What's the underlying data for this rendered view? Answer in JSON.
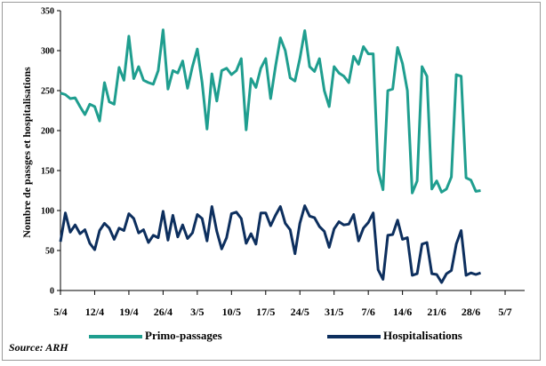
{
  "chart_data": {
    "type": "line",
    "title": "",
    "ylabel": "Nombre de passges et hospitalisations",
    "xlabel": "",
    "ylim": [
      0,
      350
    ],
    "y_ticks": [
      0,
      50,
      100,
      150,
      200,
      250,
      300,
      350
    ],
    "x_start": "5/4",
    "x_tick_labels": [
      "5/4",
      "12/4",
      "19/4",
      "26/4",
      "3/5",
      "10/5",
      "17/5",
      "24/5",
      "31/5",
      "7/6",
      "14/6",
      "21/6",
      "28/6",
      "5/7"
    ],
    "x_tick_positions_days": [
      0,
      7,
      14,
      21,
      28,
      35,
      42,
      49,
      56,
      63,
      70,
      77,
      84,
      91
    ],
    "xlim_days": [
      0,
      95
    ],
    "grid": false,
    "legend_position": "bottom",
    "series": [
      {
        "name": "Primo-passages",
        "color": "#1f9e8f",
        "values": [
          247,
          245,
          240,
          241,
          230,
          220,
          233,
          230,
          212,
          260,
          236,
          233,
          279,
          263,
          318,
          265,
          280,
          263,
          260,
          258,
          275,
          326,
          252,
          275,
          272,
          287,
          253,
          280,
          302,
          260,
          202,
          271,
          237,
          275,
          278,
          270,
          275,
          290,
          201,
          265,
          254,
          278,
          290,
          240,
          280,
          316,
          300,
          266,
          262,
          290,
          325,
          280,
          274,
          290,
          250,
          230,
          280,
          272,
          268,
          260,
          293,
          283,
          305,
          296,
          296,
          150,
          126,
          250,
          252,
          304,
          284,
          250,
          122,
          137,
          280,
          268,
          127,
          137,
          123,
          127,
          142,
          270,
          268,
          141,
          138,
          124,
          125
        ]
      },
      {
        "name": "Hospitalisations",
        "color": "#0d2f5e",
        "values": [
          61,
          97,
          73,
          82,
          71,
          76,
          59,
          51,
          75,
          84,
          78,
          64,
          78,
          75,
          96,
          90,
          72,
          76,
          60,
          69,
          66,
          99,
          63,
          94,
          67,
          82,
          65,
          72,
          95,
          90,
          62,
          105,
          74,
          52,
          66,
          96,
          98,
          90,
          59,
          71,
          58,
          97,
          97,
          81,
          94,
          105,
          84,
          76,
          46,
          84,
          106,
          93,
          91,
          80,
          74,
          54,
          77,
          86,
          82,
          83,
          95,
          62,
          78,
          85,
          97,
          26,
          14,
          69,
          70,
          88,
          64,
          66,
          19,
          21,
          58,
          60,
          21,
          20,
          10,
          21,
          25,
          58,
          75,
          19,
          22,
          20,
          22
        ]
      }
    ]
  },
  "source_text": "Source: ARH"
}
